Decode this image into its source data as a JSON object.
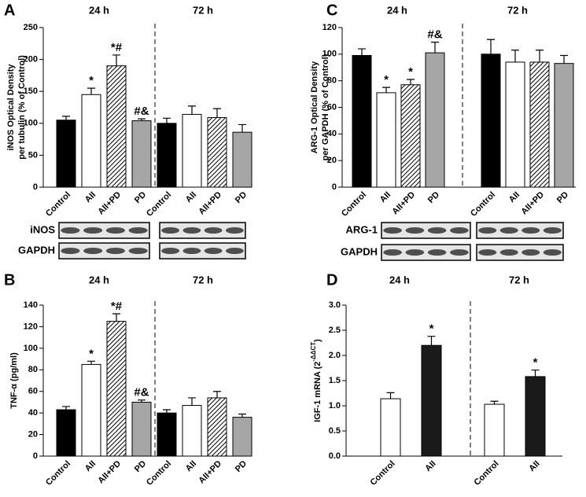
{
  "chart_data": [
    {
      "type": "bar",
      "panel_label": "A",
      "ylabel": [
        "iNOS Optical Density",
        "per tubulin  (% of Control)"
      ],
      "ylim": [
        0,
        250
      ],
      "yticks": [
        0,
        50,
        100,
        150,
        200,
        250
      ],
      "fills": [
        "#000000",
        "#ffffff",
        "hatch",
        "#a6a6a6"
      ],
      "groups": [
        {
          "title": "24 h",
          "categories": [
            "Control",
            "AII",
            "AII+PD",
            "PD"
          ],
          "values": [
            105,
            145,
            190,
            104
          ],
          "errors": [
            6,
            10,
            17,
            3
          ],
          "annotations": [
            null,
            "*",
            "*#",
            "#&"
          ]
        },
        {
          "title": "72 h",
          "categories": [
            "Control",
            "AII",
            "AII+PD",
            "PD"
          ],
          "values": [
            100,
            114,
            109,
            86
          ],
          "errors": [
            8,
            13,
            14,
            12
          ],
          "annotations": [
            null,
            null,
            null,
            null
          ]
        }
      ],
      "blots": [
        "iNOS",
        "GAPDH"
      ]
    },
    {
      "type": "bar",
      "panel_label": "B",
      "ylabel": [
        "TNF-α (pg/ml)"
      ],
      "ylim": [
        0,
        140
      ],
      "yticks": [
        0,
        20,
        40,
        60,
        80,
        100,
        120,
        140
      ],
      "fills": [
        "#000000",
        "#ffffff",
        "hatch",
        "#a6a6a6"
      ],
      "groups": [
        {
          "title": "24 h",
          "categories": [
            "Control",
            "AII",
            "AII+PD",
            "PD"
          ],
          "values": [
            43,
            85,
            125,
            50
          ],
          "errors": [
            3,
            3,
            7,
            2
          ],
          "annotations": [
            null,
            "*",
            "*#",
            "#&"
          ]
        },
        {
          "title": "72 h",
          "categories": [
            "Control",
            "AII",
            "AII+PD",
            "PD"
          ],
          "values": [
            40,
            47,
            54,
            36
          ],
          "errors": [
            3,
            7,
            6,
            3
          ],
          "annotations": [
            null,
            null,
            null,
            null
          ]
        }
      ]
    },
    {
      "type": "bar",
      "panel_label": "C",
      "ylabel": [
        "ARG-1 Optical Density",
        "per GAPDH  (% of Control)"
      ],
      "ylim": [
        0,
        120
      ],
      "yticks": [
        0,
        20,
        40,
        60,
        80,
        100,
        120
      ],
      "fills": [
        "#000000",
        "#ffffff",
        "hatch",
        "#a6a6a6"
      ],
      "groups": [
        {
          "title": "24 h",
          "categories": [
            "Control",
            "AII",
            "AII+PD",
            "PD"
          ],
          "values": [
            99,
            71,
            77,
            101
          ],
          "errors": [
            5,
            4,
            4,
            8
          ],
          "annotations": [
            null,
            "*",
            "*",
            "#&"
          ]
        },
        {
          "title": "72 h",
          "categories": [
            "Control",
            "AII",
            "AII+PD",
            "PD"
          ],
          "values": [
            100,
            94,
            94,
            93
          ],
          "errors": [
            11,
            9,
            9,
            6
          ],
          "annotations": [
            null,
            null,
            null,
            null
          ]
        }
      ],
      "blots": [
        "ARG-1",
        "GAPDH"
      ]
    },
    {
      "type": "bar",
      "panel_label": "D",
      "ylabel": [
        "IGF-1 mRNA (2"
      ],
      "ylabel_sup": "-ΔΔCT",
      "ylabel_end": ")",
      "ylim": [
        0,
        3
      ],
      "yticks": [
        {
          "value": 0,
          "label": "0.0"
        },
        0.5,
        {
          "value": 1,
          "label": "1.0"
        },
        1.5,
        {
          "value": 2,
          "label": "2.0"
        },
        2.5,
        {
          "value": 3,
          "label": "3.0"
        }
      ],
      "fills": [
        "#ffffff",
        "#1a1a1a"
      ],
      "groups": [
        {
          "title": "24 h",
          "categories": [
            "Control",
            "AII"
          ],
          "values": [
            1.14,
            2.2
          ],
          "errors": [
            0.12,
            0.18
          ],
          "annotations": [
            null,
            "*"
          ]
        },
        {
          "title": "72 h",
          "categories": [
            "Control",
            "AII"
          ],
          "values": [
            1.03,
            1.58
          ],
          "errors": [
            0.06,
            0.13
          ],
          "annotations": [
            null,
            "*"
          ]
        }
      ]
    }
  ]
}
